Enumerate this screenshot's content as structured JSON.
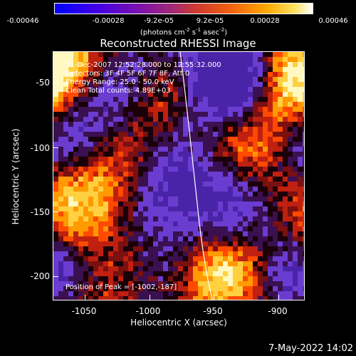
{
  "colorbar": {
    "tick_labels": [
      "-0.00046",
      "-0.00028",
      "-9.2e-05",
      "9.2e-05",
      "0.00028",
      "0.00046"
    ],
    "units_text": "(photons cm",
    "units_exp1": "-2",
    "units_mid1": " s",
    "units_exp2": "-1",
    "units_mid2": " asec",
    "units_exp3": "-2",
    "units_end": ")",
    "range": [
      -0.00046,
      0.00046
    ],
    "colors": [
      "#0000ff",
      "#6a00c8",
      "#a4208a",
      "#e0401c",
      "#ff8a00",
      "#ffd24a",
      "#ffffff"
    ]
  },
  "title": "Reconstructed RHESSI Image",
  "info": {
    "time": "31-Dec-2007 12:52:28.000 to 12:55:32.000",
    "detectors": "Detectors: 3F 4F 5F 6F 7F 8F, Att 0",
    "energy": "Energy Range: 25.0 - 50.0 keV",
    "clean": "Clean    Total counts: 4.89E+03",
    "peak": "Position of Peak = [-1002,-187]"
  },
  "axes": {
    "x_title": "Heliocentric X (arcsec)",
    "y_title": "Heliocentric Y (arcsec)",
    "x_ticks": [
      "-1050",
      "-1000",
      "-950",
      "-900"
    ],
    "y_ticks": [
      "-50",
      "-100",
      "-150",
      "-200"
    ],
    "xlim": [
      -1075,
      -880
    ],
    "ylim": [
      -222,
      -32
    ]
  },
  "timestamp": "7-May-2022 14:02"
}
